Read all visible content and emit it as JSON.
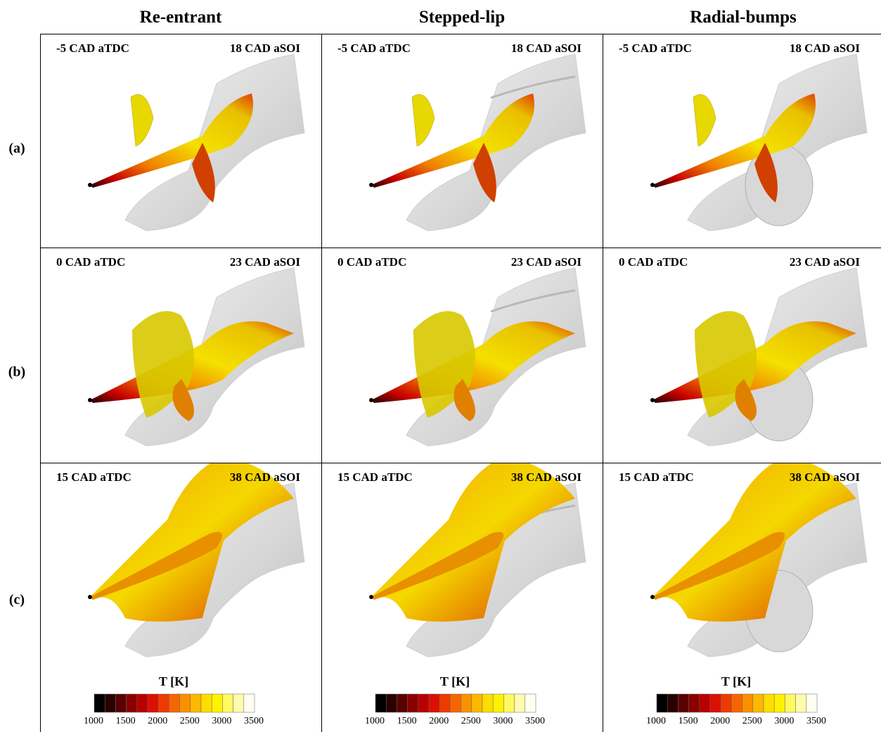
{
  "columns": [
    {
      "title": "Re-entrant"
    },
    {
      "title": "Stepped-lip"
    },
    {
      "title": "Radial-bumps"
    }
  ],
  "rows": [
    {
      "label": "(a)",
      "timing_atdc": [
        "-5 CAD aTDC",
        "-5 CAD aTDC",
        "-5 CAD aTDC"
      ],
      "timing_asoi": [
        "18 CAD aSOI",
        "18 CAD aSOI",
        "18 CAD aSOI"
      ]
    },
    {
      "label": "(b)",
      "timing_atdc": [
        "0 CAD aTDC",
        "0 CAD aTDC",
        "0 CAD aTDC"
      ],
      "timing_asoi": [
        "23 CAD aSOI",
        "23 CAD aSOI",
        "23 CAD aSOI"
      ]
    },
    {
      "label": "(c)",
      "timing_atdc": [
        "15 CAD aTDC",
        "15 CAD aTDC",
        "15 CAD aTDC"
      ],
      "timing_asoi": [
        "38 CAD aSOI",
        "38 CAD aSOI",
        "38 CAD aSOI"
      ]
    }
  ],
  "colorbar": {
    "title": "T [K]",
    "ticks": [
      "1000",
      "1500",
      "2000",
      "2500",
      "3000",
      "3500"
    ],
    "colors": [
      "#000000",
      "#2a0000",
      "#5a0000",
      "#8a0000",
      "#b80000",
      "#dc1000",
      "#ee3a00",
      "#f66600",
      "#fb9000",
      "#feb800",
      "#ffdd00",
      "#fff200",
      "#fffa60",
      "#fffcb0",
      "#fffef0"
    ]
  }
}
